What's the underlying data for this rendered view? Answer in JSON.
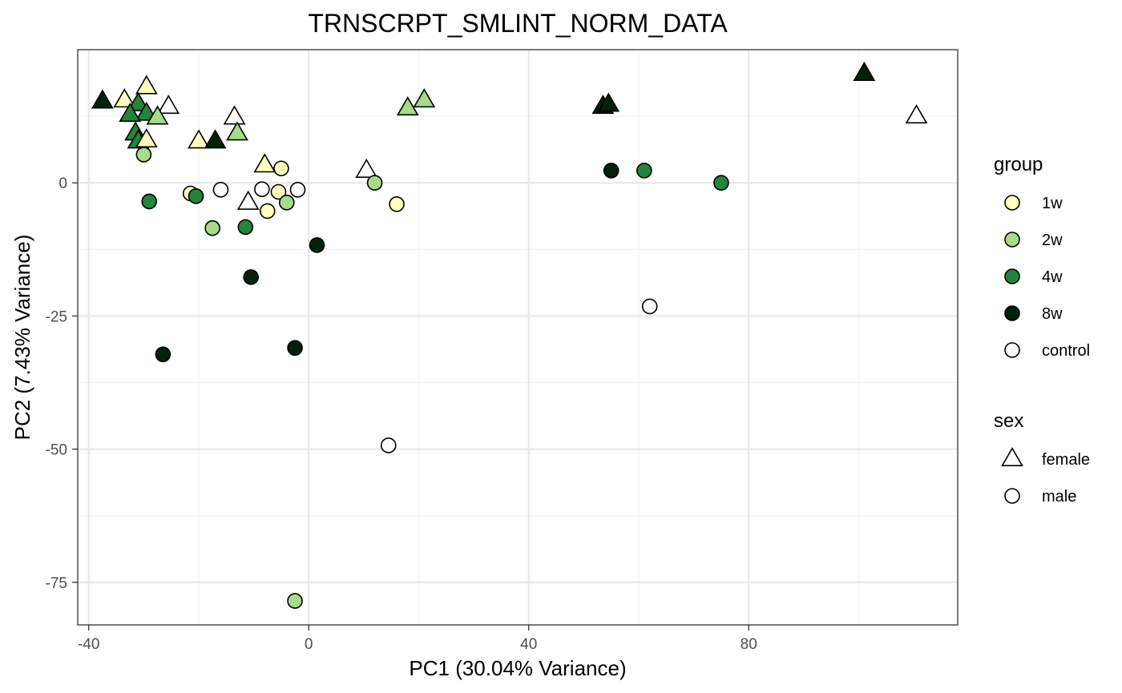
{
  "chart_data": {
    "type": "scatter",
    "title": "TRNSCRPT_SMLINT_NORM_DATA",
    "xlabel": "PC1 (30.04% Variance)",
    "ylabel": "PC2 (7.43% Variance)",
    "xlim": [
      -42,
      118
    ],
    "ylim": [
      -83,
      25
    ],
    "x_ticks": [
      -40,
      0,
      40,
      80
    ],
    "x_tick_labels": [
      "-40",
      "0",
      "40",
      "80"
    ],
    "y_ticks": [
      -75,
      -50,
      -25,
      0
    ],
    "y_tick_labels": [
      "-75",
      "-50",
      "-25",
      "0"
    ],
    "grid": true,
    "legend_placement": "right",
    "colors": {
      "1w": "#ffffbf",
      "2w": "#a6db8a",
      "4w": "#23843c",
      "8w": "#00220d",
      "control": "#ffffff"
    },
    "legends": [
      {
        "title": "group",
        "items": [
          {
            "label": "1w",
            "shape": "circle",
            "group": "1w"
          },
          {
            "label": "2w",
            "shape": "circle",
            "group": "2w"
          },
          {
            "label": "4w",
            "shape": "circle",
            "group": "4w"
          },
          {
            "label": "8w",
            "shape": "circle",
            "group": "8w"
          },
          {
            "label": "control",
            "shape": "circle",
            "group": "control"
          }
        ]
      },
      {
        "title": "sex",
        "items": [
          {
            "label": "female",
            "shape": "triangle",
            "group": "control"
          },
          {
            "label": "male",
            "shape": "circle",
            "group": "control"
          }
        ]
      }
    ],
    "points": [
      {
        "x": -37.5,
        "y": 15.3,
        "group": "8w",
        "sex": "female"
      },
      {
        "x": -33.5,
        "y": 15.5,
        "group": "1w",
        "sex": "female"
      },
      {
        "x": -29.5,
        "y": 18.0,
        "group": "1w",
        "sex": "female"
      },
      {
        "x": -25.5,
        "y": 14.3,
        "group": "control",
        "sex": "female"
      },
      {
        "x": -31.0,
        "y": 14.8,
        "group": "4w",
        "sex": "female"
      },
      {
        "x": -29.5,
        "y": 13.0,
        "group": "4w",
        "sex": "female"
      },
      {
        "x": -32.5,
        "y": 12.8,
        "group": "4w",
        "sex": "female"
      },
      {
        "x": -27.5,
        "y": 12.3,
        "group": "2w",
        "sex": "female"
      },
      {
        "x": -31.5,
        "y": 9.3,
        "group": "4w",
        "sex": "female"
      },
      {
        "x": -31.0,
        "y": 7.8,
        "group": "4w",
        "sex": "female"
      },
      {
        "x": -29.5,
        "y": 8.0,
        "group": "1w",
        "sex": "female"
      },
      {
        "x": -20.0,
        "y": 7.8,
        "group": "1w",
        "sex": "female"
      },
      {
        "x": -17.0,
        "y": 7.8,
        "group": "8w",
        "sex": "female"
      },
      {
        "x": -13.5,
        "y": 12.3,
        "group": "control",
        "sex": "female"
      },
      {
        "x": -13.0,
        "y": 9.3,
        "group": "2w",
        "sex": "female"
      },
      {
        "x": -8.0,
        "y": 3.3,
        "group": "1w",
        "sex": "female"
      },
      {
        "x": -11.0,
        "y": -3.7,
        "group": "control",
        "sex": "female"
      },
      {
        "x": 10.5,
        "y": 2.3,
        "group": "control",
        "sex": "female"
      },
      {
        "x": 18.0,
        "y": 14.0,
        "group": "2w",
        "sex": "female"
      },
      {
        "x": 21.0,
        "y": 15.5,
        "group": "2w",
        "sex": "female"
      },
      {
        "x": 53.5,
        "y": 14.3,
        "group": "8w",
        "sex": "female"
      },
      {
        "x": 54.5,
        "y": 14.7,
        "group": "8w",
        "sex": "female"
      },
      {
        "x": 101.0,
        "y": 20.5,
        "group": "8w",
        "sex": "female"
      },
      {
        "x": 110.5,
        "y": 12.5,
        "group": "control",
        "sex": "female"
      },
      {
        "x": -30.0,
        "y": 5.3,
        "group": "2w",
        "sex": "male"
      },
      {
        "x": -21.5,
        "y": -2.0,
        "group": "1w",
        "sex": "male"
      },
      {
        "x": -20.5,
        "y": -2.5,
        "group": "4w",
        "sex": "male"
      },
      {
        "x": -16.0,
        "y": -1.3,
        "group": "control",
        "sex": "male"
      },
      {
        "x": -29.0,
        "y": -3.5,
        "group": "4w",
        "sex": "male"
      },
      {
        "x": -17.5,
        "y": -8.5,
        "group": "2w",
        "sex": "male"
      },
      {
        "x": -11.5,
        "y": -8.3,
        "group": "4w",
        "sex": "male"
      },
      {
        "x": -8.5,
        "y": -1.2,
        "group": "control",
        "sex": "male"
      },
      {
        "x": -7.5,
        "y": -5.3,
        "group": "1w",
        "sex": "male"
      },
      {
        "x": -5.5,
        "y": -1.7,
        "group": "1w",
        "sex": "male"
      },
      {
        "x": -5.0,
        "y": 2.7,
        "group": "1w",
        "sex": "male"
      },
      {
        "x": -4.0,
        "y": -3.7,
        "group": "2w",
        "sex": "male"
      },
      {
        "x": -2.0,
        "y": -1.3,
        "group": "control",
        "sex": "male"
      },
      {
        "x": 12.0,
        "y": 0.0,
        "group": "2w",
        "sex": "male"
      },
      {
        "x": 16.0,
        "y": -4.0,
        "group": "1w",
        "sex": "male"
      },
      {
        "x": 1.5,
        "y": -11.7,
        "group": "8w",
        "sex": "male"
      },
      {
        "x": -10.5,
        "y": -17.7,
        "group": "8w",
        "sex": "male"
      },
      {
        "x": -26.5,
        "y": -32.2,
        "group": "8w",
        "sex": "male"
      },
      {
        "x": -2.5,
        "y": -31.0,
        "group": "8w",
        "sex": "male"
      },
      {
        "x": 14.5,
        "y": -49.3,
        "group": "control",
        "sex": "male"
      },
      {
        "x": -2.5,
        "y": -78.5,
        "group": "2w",
        "sex": "male"
      },
      {
        "x": 55.0,
        "y": 2.3,
        "group": "8w",
        "sex": "male"
      },
      {
        "x": 61.0,
        "y": 2.3,
        "group": "4w",
        "sex": "male"
      },
      {
        "x": 75.0,
        "y": 0.0,
        "group": "4w",
        "sex": "male"
      },
      {
        "x": 62.0,
        "y": -23.2,
        "group": "control",
        "sex": "male"
      }
    ]
  }
}
